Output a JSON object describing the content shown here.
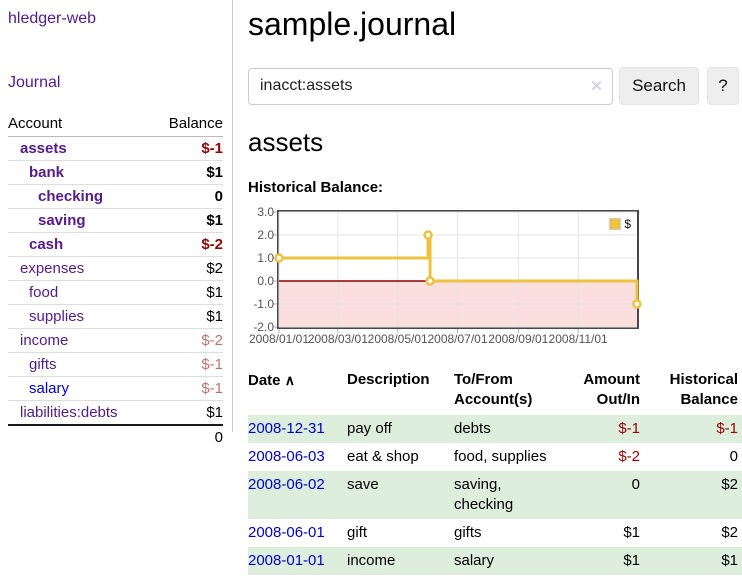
{
  "app": {
    "title": "hledger-web"
  },
  "sidebar": {
    "journal_link": "Journal",
    "accounts": {
      "account_header": "Account",
      "balance_header": "Balance",
      "rows": [
        {
          "name": "assets",
          "balance": "$-1",
          "indent": 1,
          "bold": true,
          "name_style": "purple",
          "balance_style": "neg-strong"
        },
        {
          "name": "bank",
          "balance": "$1",
          "indent": 2,
          "bold": true,
          "name_style": "purple",
          "balance_style": "plain"
        },
        {
          "name": "checking",
          "balance": "0",
          "indent": 3,
          "bold": true,
          "name_style": "purple",
          "balance_style": "plain"
        },
        {
          "name": "saving",
          "balance": "$1",
          "indent": 3,
          "bold": true,
          "name_style": "purple",
          "balance_style": "plain"
        },
        {
          "name": "cash",
          "balance": "$-2",
          "indent": 2,
          "bold": true,
          "name_style": "purple",
          "balance_style": "neg-strong"
        },
        {
          "name": "expenses",
          "balance": "$2",
          "indent": 1,
          "bold": false,
          "name_style": "purple",
          "balance_style": "plain"
        },
        {
          "name": "food",
          "balance": "$1",
          "indent": 2,
          "bold": false,
          "name_style": "purple",
          "balance_style": "plain"
        },
        {
          "name": "supplies",
          "balance": "$1",
          "indent": 2,
          "bold": false,
          "name_style": "purple",
          "balance_style": "plain"
        },
        {
          "name": "income",
          "balance": "$-2",
          "indent": 1,
          "bold": false,
          "name_style": "purple",
          "balance_style": "neg-soft"
        },
        {
          "name": "gifts",
          "balance": "$-1",
          "indent": 2,
          "bold": false,
          "name_style": "purple",
          "balance_style": "neg-soft"
        },
        {
          "name": "salary",
          "balance": "$-1",
          "indent": 2,
          "bold": false,
          "name_style": "blue",
          "balance_style": "neg-soft"
        },
        {
          "name": "liabilities:debts",
          "balance": "$1",
          "indent": 1,
          "bold": false,
          "name_style": "purple",
          "balance_style": "plain"
        }
      ],
      "total": "0"
    }
  },
  "main": {
    "page_title": "sample.journal",
    "search": {
      "value": "inacct:assets",
      "clear_icon": "✕",
      "button_label": "Search",
      "help_label": "?"
    },
    "account_heading": "assets",
    "chart_label": "Historical Balance:"
  },
  "chart_data": {
    "type": "line",
    "title": "Historical Balance",
    "series": [
      {
        "name": "$",
        "color": "#edc240",
        "points": [
          [
            "2008-01-01",
            1
          ],
          [
            "2008-06-01",
            1
          ],
          [
            "2008-06-01",
            2
          ],
          [
            "2008-06-03",
            2
          ],
          [
            "2008-06-03",
            0
          ],
          [
            "2008-12-31",
            0
          ],
          [
            "2008-12-31",
            -1
          ]
        ],
        "markers": [
          [
            "2008-01-01",
            1
          ],
          [
            "2008-06-01",
            2
          ],
          [
            "2008-06-03",
            0
          ],
          [
            "2008-12-31",
            -1
          ]
        ]
      }
    ],
    "xlim": [
      "2008-01-01",
      "2008-12-31"
    ],
    "ylim": [
      -2,
      3
    ],
    "x_ticks": [
      "2008/01/01",
      "2008/03/01",
      "2008/05/01",
      "2008/07/01",
      "2008/09/01",
      "2008/11/01"
    ],
    "y_ticks": [
      "3.0",
      "2.0",
      "1.0",
      "0.0",
      "-1.0",
      "-2.0"
    ],
    "legend": {
      "label": "$",
      "position": "top-right"
    },
    "grid": true,
    "grid_color": "#e3e3e3",
    "negative_region_color": "#fbdede",
    "zero_line_color": "#8b0000",
    "border_color": "#474747"
  },
  "register": {
    "headers": {
      "date": "Date",
      "sort_icon": "∧",
      "description": "Description",
      "accounts": "To/From\nAccount(s)",
      "amount": "Amount\nOut/In",
      "balance": "Historical\nBalance"
    },
    "rows": [
      {
        "date": "2008-12-31",
        "description": "pay off",
        "accounts": "debts",
        "amount": "$-1",
        "balance": "$-1"
      },
      {
        "date": "2008-06-03",
        "description": "eat & shop",
        "accounts": "food, supplies",
        "amount": "$-2",
        "balance": "0"
      },
      {
        "date": "2008-06-02",
        "description": "save",
        "accounts": "saving,\nchecking",
        "amount": "0",
        "balance": "$2"
      },
      {
        "date": "2008-06-01",
        "description": "gift",
        "accounts": "gifts",
        "amount": "$1",
        "balance": "$2"
      },
      {
        "date": "2008-01-01",
        "description": "income",
        "accounts": "salary",
        "amount": "$1",
        "balance": "$1"
      }
    ]
  },
  "colors": {
    "visited_link_purple": "#551a8b",
    "link_blue": "#0000cc",
    "negative_strong": "#990000",
    "negative_soft": "#c57070",
    "row_stripe_green": "#ddeedd",
    "series_gold": "#edc240"
  }
}
